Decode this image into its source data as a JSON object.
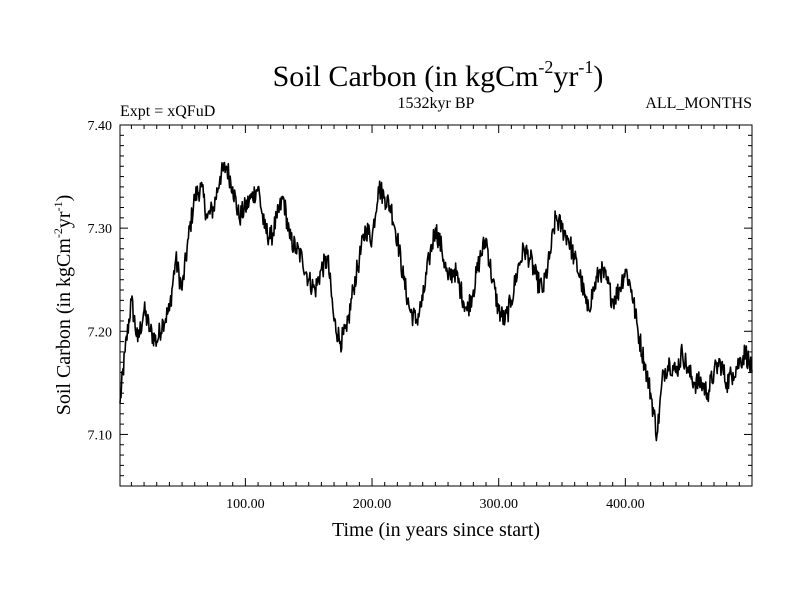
{
  "chart_data": {
    "type": "line",
    "title": {
      "main": "Soil Carbon (in kgCm",
      "sup1": "-2",
      "mid": "yr",
      "sup2": "-1",
      "end": ")"
    },
    "left_label": "Expt = xQFuD",
    "center_label": "1532kyr BP",
    "right_label": "ALL_MONTHS",
    "xlabel": "Time (in years since start)",
    "ylabel": {
      "main": "Soil Carbon (in kgCm",
      "sup1": "-2",
      "mid": "yr",
      "sup2": "-1",
      "end": ")"
    },
    "xlim": [
      1,
      500
    ],
    "ylim": [
      7.05,
      7.4
    ],
    "x_ticks": [
      100,
      200,
      300,
      400
    ],
    "x_tick_labels": [
      "100.00",
      "200.00",
      "300.00",
      "400.00"
    ],
    "y_ticks": [
      7.1,
      7.2,
      7.3,
      7.4
    ],
    "y_tick_labels": [
      "7.10",
      "7.20",
      "7.30",
      "7.40"
    ],
    "series": [
      {
        "name": "Soil Carbon",
        "color": "#000000",
        "x": [
          1,
          5,
          10,
          15,
          20,
          25,
          30,
          35,
          40,
          45,
          50,
          55,
          60,
          65,
          70,
          75,
          80,
          85,
          90,
          95,
          100,
          105,
          110,
          115,
          120,
          125,
          130,
          135,
          140,
          145,
          150,
          155,
          160,
          165,
          170,
          175,
          180,
          185,
          190,
          195,
          200,
          205,
          210,
          215,
          220,
          225,
          230,
          235,
          240,
          245,
          250,
          255,
          260,
          265,
          270,
          275,
          280,
          285,
          290,
          295,
          300,
          305,
          310,
          315,
          320,
          325,
          330,
          335,
          340,
          345,
          350,
          355,
          360,
          365,
          370,
          375,
          380,
          385,
          390,
          395,
          400,
          405,
          410,
          415,
          420,
          425,
          430,
          435,
          440,
          445,
          450,
          455,
          460,
          465,
          470,
          475,
          480,
          485,
          490,
          495,
          500
        ],
        "values": [
          7.13,
          7.18,
          7.23,
          7.19,
          7.22,
          7.2,
          7.19,
          7.21,
          7.22,
          7.27,
          7.24,
          7.29,
          7.33,
          7.34,
          7.31,
          7.32,
          7.35,
          7.36,
          7.34,
          7.31,
          7.32,
          7.33,
          7.34,
          7.3,
          7.29,
          7.31,
          7.33,
          7.29,
          7.28,
          7.27,
          7.25,
          7.24,
          7.26,
          7.27,
          7.21,
          7.19,
          7.2,
          7.24,
          7.27,
          7.3,
          7.29,
          7.34,
          7.33,
          7.32,
          7.29,
          7.25,
          7.22,
          7.21,
          7.23,
          7.27,
          7.3,
          7.28,
          7.25,
          7.26,
          7.24,
          7.22,
          7.24,
          7.27,
          7.29,
          7.25,
          7.22,
          7.21,
          7.23,
          7.26,
          7.28,
          7.27,
          7.25,
          7.24,
          7.27,
          7.31,
          7.3,
          7.29,
          7.27,
          7.25,
          7.22,
          7.24,
          7.26,
          7.25,
          7.23,
          7.24,
          7.26,
          7.24,
          7.2,
          7.17,
          7.14,
          7.1,
          7.16,
          7.17,
          7.16,
          7.18,
          7.16,
          7.15,
          7.15,
          7.14,
          7.16,
          7.17,
          7.15,
          7.16,
          7.17,
          7.18,
          7.16
        ]
      }
    ]
  }
}
